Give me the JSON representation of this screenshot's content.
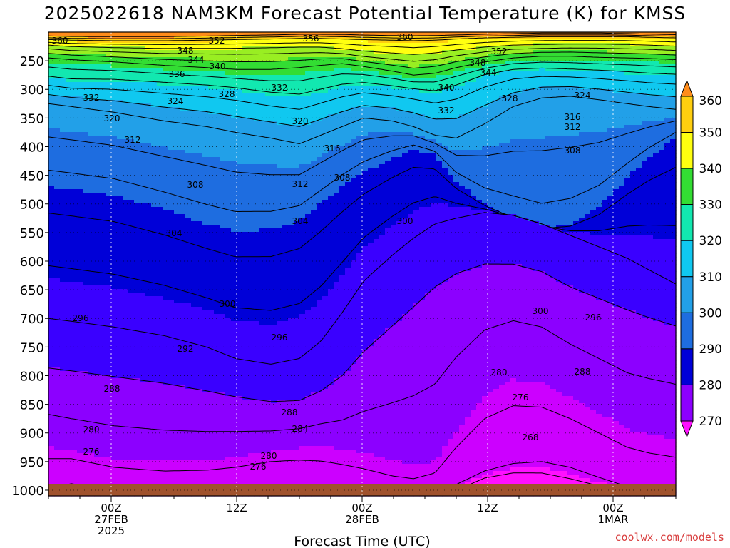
{
  "chart_data": {
    "type": "contour",
    "title": "2025022618 NAM3KM Forecast Potential Temperature (K) for KMSS",
    "xlabel": "Forecast Time (UTC)",
    "ylabel": "",
    "y_ticks": [
      250,
      300,
      350,
      400,
      450,
      500,
      550,
      600,
      650,
      700,
      750,
      800,
      850,
      900,
      950,
      1000
    ],
    "ylim": [
      1010,
      200
    ],
    "x_ticks": [
      {
        "hour": 6,
        "label1": "00Z",
        "label2": "27FEB",
        "label3": "2025"
      },
      {
        "hour": 18,
        "label1": "12Z",
        "label2": "",
        "label3": ""
      },
      {
        "hour": 30,
        "label1": "00Z",
        "label2": "28FEB",
        "label3": ""
      },
      {
        "hour": 42,
        "label1": "12Z",
        "label2": "",
        "label3": ""
      },
      {
        "hour": 54,
        "label1": "00Z",
        "label2": "1MAR",
        "label3": ""
      }
    ],
    "xlim": [
      0,
      60
    ],
    "colorbar_levels": [
      270,
      280,
      290,
      300,
      310,
      320,
      330,
      340,
      350,
      360
    ],
    "colorbar_colors": [
      "#ff10ff",
      "#cc00ff",
      "#8c00ff",
      "#3a00ff",
      "#0000d8",
      "#1e6de0",
      "#22a0e8",
      "#10c8f0",
      "#12e8b0",
      "#33dd33",
      "#99ee22",
      "#ffff10",
      "#ffcf10",
      "#ff8c1a"
    ],
    "contour_labels": [
      {
        "text": "360",
        "x": 84,
        "y": 61
      },
      {
        "text": "352",
        "x": 304,
        "y": 61
      },
      {
        "text": "356",
        "x": 436,
        "y": 58
      },
      {
        "text": "360",
        "x": 568,
        "y": 56
      },
      {
        "text": "348",
        "x": 260,
        "y": 75
      },
      {
        "text": "344",
        "x": 275,
        "y": 88
      },
      {
        "text": "340",
        "x": 305,
        "y": 97
      },
      {
        "text": "336",
        "x": 248,
        "y": 108
      },
      {
        "text": "352",
        "x": 700,
        "y": 76
      },
      {
        "text": "348",
        "x": 670,
        "y": 92
      },
      {
        "text": "344",
        "x": 685,
        "y": 106
      },
      {
        "text": "332",
        "x": 128,
        "y": 141
      },
      {
        "text": "324",
        "x": 246,
        "y": 146
      },
      {
        "text": "328",
        "x": 318,
        "y": 136
      },
      {
        "text": "332",
        "x": 392,
        "y": 127
      },
      {
        "text": "340",
        "x": 626,
        "y": 127
      },
      {
        "text": "328",
        "x": 715,
        "y": 142
      },
      {
        "text": "324",
        "x": 817,
        "y": 138
      },
      {
        "text": "332",
        "x": 626,
        "y": 159
      },
      {
        "text": "320",
        "x": 157,
        "y": 170
      },
      {
        "text": "320",
        "x": 421,
        "y": 174
      },
      {
        "text": "316",
        "x": 803,
        "y": 168
      },
      {
        "text": "312",
        "x": 803,
        "y": 182
      },
      {
        "text": "312",
        "x": 186,
        "y": 200
      },
      {
        "text": "316",
        "x": 466,
        "y": 212
      },
      {
        "text": "308",
        "x": 803,
        "y": 215
      },
      {
        "text": "308",
        "x": 480,
        "y": 253
      },
      {
        "text": "308",
        "x": 274,
        "y": 263
      },
      {
        "text": "312",
        "x": 421,
        "y": 262
      },
      {
        "text": "304",
        "x": 244,
        "y": 331
      },
      {
        "text": "304",
        "x": 421,
        "y": 314
      },
      {
        "text": "300",
        "x": 568,
        "y": 314
      },
      {
        "text": "300",
        "x": 319,
        "y": 430
      },
      {
        "text": "300",
        "x": 758,
        "y": 440
      },
      {
        "text": "296",
        "x": 113,
        "y": 450
      },
      {
        "text": "296",
        "x": 832,
        "y": 449
      },
      {
        "text": "296",
        "x": 392,
        "y": 477
      },
      {
        "text": "292",
        "x": 260,
        "y": 493
      },
      {
        "text": "280",
        "x": 700,
        "y": 526
      },
      {
        "text": "288",
        "x": 817,
        "y": 525
      },
      {
        "text": "288",
        "x": 157,
        "y": 549
      },
      {
        "text": "276",
        "x": 730,
        "y": 561
      },
      {
        "text": "288",
        "x": 406,
        "y": 582
      },
      {
        "text": "284",
        "x": 421,
        "y": 605
      },
      {
        "text": "280",
        "x": 128,
        "y": 606
      },
      {
        "text": "268",
        "x": 744,
        "y": 617
      },
      {
        "text": "276",
        "x": 128,
        "y": 637
      },
      {
        "text": "280",
        "x": 377,
        "y": 643
      },
      {
        "text": "276",
        "x": 362,
        "y": 658
      }
    ]
  },
  "credit": "coolwx.com/models"
}
